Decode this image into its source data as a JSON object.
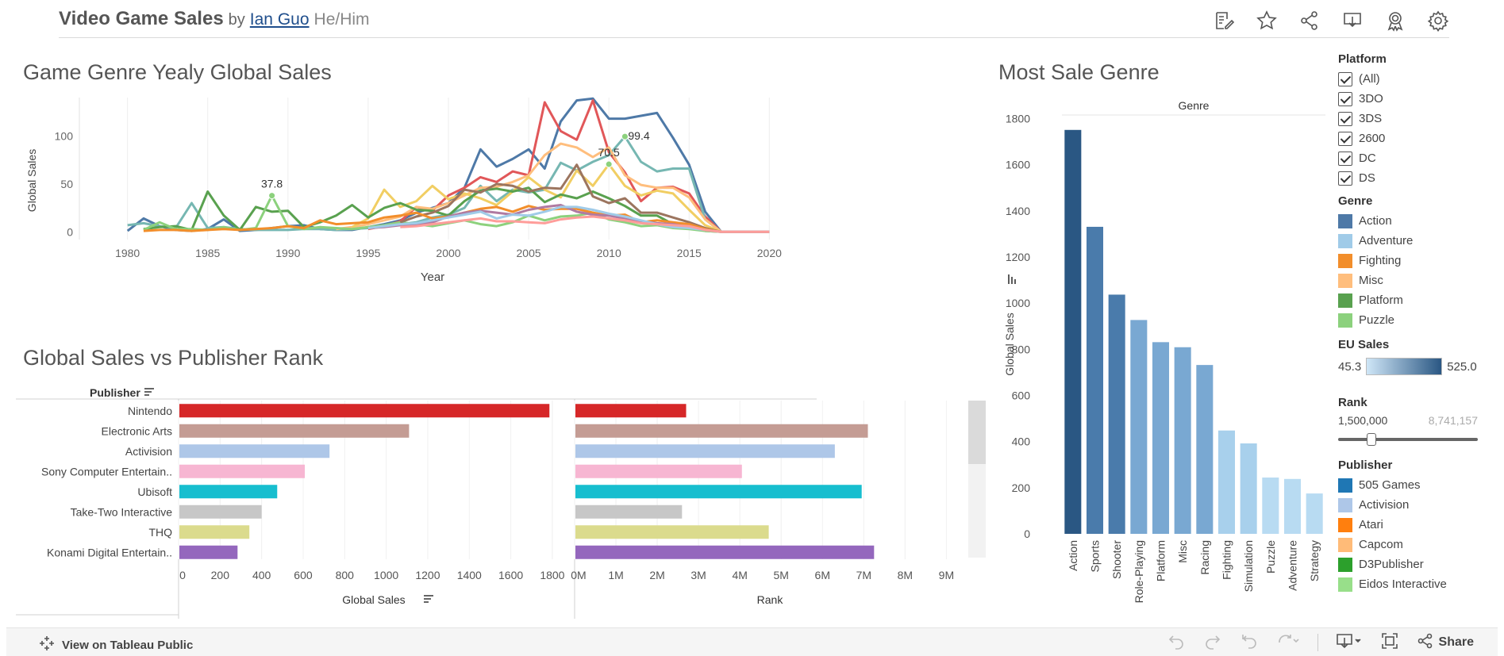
{
  "header": {
    "title": "Video Game Sales",
    "by": "by",
    "author": "Ian Guo",
    "pronouns": "He/Him",
    "icons": [
      "edit-icon",
      "star-icon",
      "share-icon",
      "download-icon",
      "badge-icon",
      "gear-icon"
    ]
  },
  "footer": {
    "view_label": "View on Tableau Public",
    "share_label": "Share"
  },
  "filters": {
    "platform": {
      "title": "Platform",
      "items": [
        "(All)",
        "3DO",
        "3DS",
        "2600",
        "DC",
        "DS"
      ]
    },
    "genre": {
      "title": "Genre",
      "items": [
        {
          "label": "Action",
          "color": "#4e79a7"
        },
        {
          "label": "Adventure",
          "color": "#a0cbe8"
        },
        {
          "label": "Fighting",
          "color": "#f28e2b"
        },
        {
          "label": "Misc",
          "color": "#ffbe7d"
        },
        {
          "label": "Platform",
          "color": "#59a14f"
        },
        {
          "label": "Puzzle",
          "color": "#8cd17d"
        }
      ]
    },
    "eu_sales": {
      "title": "EU Sales",
      "min": "45.3",
      "max": "525.0",
      "color_low": "#cfe6f7",
      "color_high": "#2a5783"
    },
    "rank": {
      "title": "Rank",
      "low": "1,500,000",
      "high": "8,741,157"
    },
    "publisher": {
      "title": "Publisher",
      "items": [
        {
          "label": "505 Games",
          "color": "#1f77b4"
        },
        {
          "label": "Activision",
          "color": "#aec7e8"
        },
        {
          "label": "Atari",
          "color": "#ff7f0e"
        },
        {
          "label": "Capcom",
          "color": "#ffbb78"
        },
        {
          "label": "D3Publisher",
          "color": "#2ca02c"
        },
        {
          "label": "Eidos Interactive",
          "color": "#98df8a"
        }
      ]
    }
  },
  "chart_data": [
    {
      "type": "line",
      "title": "Game Genre Yealy Global Sales",
      "xlabel": "Year",
      "ylabel": "Global Sales",
      "xlim": [
        1977,
        2023
      ],
      "ylim": [
        -8,
        140
      ],
      "xticks": [
        "1980",
        "1985",
        "1990",
        "1995",
        "2000",
        "2005",
        "2010",
        "2015",
        "2020"
      ],
      "yticks": [
        "0",
        "50",
        "100"
      ],
      "grid": "vertical",
      "annotations": [
        {
          "x": 1989,
          "y": 37.8,
          "label": "37.8"
        },
        {
          "x": 2011,
          "y": 99.4,
          "label": "99.4"
        },
        {
          "x": 2010,
          "y": 70.5,
          "label": "70.5"
        }
      ],
      "x": [
        1980,
        1981,
        1982,
        1983,
        1984,
        1985,
        1986,
        1987,
        1988,
        1989,
        1990,
        1991,
        1992,
        1993,
        1994,
        1995,
        1996,
        1997,
        1998,
        1999,
        2000,
        2001,
        2002,
        2003,
        2004,
        2005,
        2006,
        2007,
        2008,
        2009,
        2010,
        2011,
        2012,
        2013,
        2014,
        2015,
        2016,
        2017,
        2018,
        2019,
        2020
      ],
      "series": [
        {
          "color": "#4e79a7",
          "values": [
            1,
            14,
            6,
            2,
            1,
            3,
            13,
            1,
            2,
            4,
            6,
            7,
            3,
            2,
            2,
            5,
            8,
            12,
            20,
            25,
            30,
            46,
            86,
            68,
            76,
            86,
            66,
            115,
            137,
            139,
            118,
            118,
            121,
            124,
            98,
            70,
            21,
            0,
            0,
            0,
            0
          ]
        },
        {
          "color": "#e15759",
          "values": [
            null,
            null,
            null,
            null,
            null,
            null,
            null,
            null,
            null,
            null,
            null,
            null,
            null,
            null,
            null,
            3,
            6,
            11,
            26,
            22,
            38,
            46,
            57,
            52,
            63,
            59,
            135,
            105,
            96,
            137,
            83,
            62,
            32,
            46,
            47,
            40,
            16,
            0,
            0,
            0,
            0
          ]
        },
        {
          "color": "#76b7b2",
          "values": [
            7,
            9,
            6,
            4,
            30,
            4,
            5,
            3,
            2,
            2,
            2,
            3,
            3,
            2,
            3,
            4,
            6,
            8,
            10,
            15,
            18,
            25,
            48,
            32,
            44,
            41,
            44,
            72,
            64,
            73,
            80,
            99.4,
            73,
            63,
            66,
            66,
            13,
            0,
            0,
            0,
            0
          ]
        },
        {
          "color": "#ffbe7d",
          "values": [
            null,
            null,
            null,
            null,
            null,
            null,
            null,
            null,
            null,
            null,
            null,
            null,
            null,
            3,
            5,
            8,
            12,
            16,
            26,
            24,
            30,
            38,
            46,
            47,
            52,
            59,
            80,
            92,
            88,
            78,
            88,
            59,
            49,
            46,
            46,
            36,
            13,
            0,
            0,
            0,
            0
          ]
        },
        {
          "color": "#f1ce63",
          "values": [
            null,
            null,
            null,
            null,
            null,
            null,
            null,
            null,
            null,
            null,
            null,
            null,
            null,
            null,
            5,
            14,
            44,
            26,
            32,
            48,
            34,
            40,
            35,
            28,
            42,
            57,
            44,
            36,
            64,
            48,
            70.5,
            48,
            38,
            43,
            40,
            23,
            7,
            0,
            0,
            0,
            0
          ]
        },
        {
          "color": "#59a14f",
          "values": [
            null,
            3,
            5,
            6,
            2,
            42,
            17,
            2,
            26,
            21,
            22,
            5,
            10,
            17,
            28,
            15,
            25,
            30,
            23,
            22,
            17,
            32,
            43,
            45,
            42,
            46,
            31,
            39,
            35,
            42,
            35,
            27,
            17,
            17,
            8,
            7,
            1,
            0,
            0,
            0,
            0
          ]
        },
        {
          "color": "#8cd17d",
          "values": [
            null,
            2,
            10,
            3,
            3,
            2,
            5,
            2,
            4,
            37.8,
            6,
            3,
            5,
            4,
            3,
            5,
            7,
            10,
            8,
            6,
            9,
            12,
            8,
            6,
            10,
            17,
            12,
            16,
            17,
            20,
            13,
            10,
            6,
            7,
            4,
            3,
            1,
            0,
            0,
            0,
            0
          ]
        },
        {
          "color": "#9c755f",
          "values": [
            null,
            null,
            null,
            null,
            null,
            null,
            null,
            null,
            null,
            null,
            null,
            null,
            null,
            null,
            null,
            null,
            null,
            10,
            16,
            20,
            27,
            44,
            41,
            50,
            48,
            42,
            46,
            45,
            70,
            37,
            30,
            35,
            20,
            20,
            15,
            10,
            4,
            0,
            0,
            0,
            0
          ]
        },
        {
          "color": "#f28e2b",
          "values": [
            null,
            1,
            2,
            2,
            1,
            2,
            3,
            2,
            3,
            4,
            6,
            4,
            12,
            8,
            9,
            10,
            15,
            17,
            20,
            14,
            16,
            20,
            24,
            26,
            21,
            27,
            23,
            24,
            24,
            20,
            17,
            18,
            10,
            12,
            10,
            8,
            3,
            0,
            0,
            0,
            0
          ]
        },
        {
          "color": "#b07aa1",
          "values": [
            null,
            null,
            null,
            null,
            null,
            null,
            null,
            null,
            null,
            null,
            null,
            null,
            null,
            null,
            null,
            4,
            5,
            7,
            8,
            10,
            16,
            20,
            22,
            20,
            18,
            23,
            26,
            28,
            21,
            18,
            17,
            14,
            11,
            9,
            8,
            5,
            2,
            0,
            0,
            0,
            0
          ]
        },
        {
          "color": "#a0cbe8",
          "values": [
            null,
            null,
            null,
            null,
            null,
            null,
            null,
            null,
            null,
            null,
            null,
            null,
            null,
            null,
            null,
            4,
            6,
            8,
            9,
            12,
            15,
            18,
            21,
            14,
            18,
            17,
            21,
            26,
            26,
            23,
            19,
            16,
            12,
            8,
            5,
            4,
            2,
            0,
            0,
            0,
            0
          ]
        },
        {
          "color": "#ff9d9a",
          "values": [
            null,
            null,
            null,
            null,
            null,
            null,
            null,
            null,
            null,
            null,
            null,
            null,
            null,
            null,
            null,
            null,
            null,
            5,
            6,
            8,
            10,
            12,
            14,
            11,
            11,
            10,
            9,
            13,
            15,
            16,
            14,
            12,
            9,
            8,
            7,
            6,
            2,
            0,
            0,
            0,
            0
          ]
        }
      ]
    },
    {
      "type": "bar",
      "title": "Global Sales vs Publisher Rank",
      "categories_header": "Publisher",
      "categories": [
        "Nintendo",
        "Electronic Arts",
        "Activision",
        "Sony Computer Entertain..",
        "Ubisoft",
        "Take-Two Interactive",
        "THQ",
        "Konami Digital Entertain.."
      ],
      "colors": [
        "#d62728",
        "#c49c94",
        "#aec7e8",
        "#f7b6d2",
        "#17becf",
        "#c7c7c7",
        "#dbdb8d",
        "#9467bd"
      ],
      "panels": [
        {
          "xlabel": "Global Sales",
          "xlim": [
            0,
            1850
          ],
          "xticks": [
            "0",
            "200",
            "400",
            "600",
            "800",
            "1000",
            "1200",
            "1400",
            "1600",
            "1800"
          ],
          "tick_values": [
            0,
            200,
            400,
            600,
            800,
            1000,
            1200,
            1400,
            1600,
            1800
          ],
          "values": [
            1786,
            1110,
            727,
            608,
            475,
            400,
            341,
            284
          ]
        },
        {
          "xlabel": "Rank",
          "xlim": [
            0,
            9300000
          ],
          "xticks": [
            "0M",
            "1M",
            "2M",
            "3M",
            "4M",
            "5M",
            "6M",
            "7M",
            "8M",
            "9M"
          ],
          "tick_values": [
            0,
            1000000,
            2000000,
            3000000,
            4000000,
            5000000,
            6000000,
            7000000,
            8000000,
            9000000
          ],
          "values": [
            2700000,
            7100000,
            6300000,
            4050000,
            6950000,
            2600000,
            4700000,
            7250000
          ]
        }
      ]
    },
    {
      "type": "bar",
      "title": "Most Sale Genre",
      "header": "Genre",
      "ylabel": "Global Sales",
      "ylim": [
        0,
        1850
      ],
      "yticks": [
        "0",
        "200",
        "400",
        "600",
        "800",
        "1000",
        "1200",
        "1400",
        "1600",
        "1800"
      ],
      "tick_values": [
        0,
        200,
        400,
        600,
        800,
        1000,
        1200,
        1400,
        1600,
        1800
      ],
      "categories": [
        "Action",
        "Sports",
        "Shooter",
        "Role-Playing",
        "Platform",
        "Misc",
        "Racing",
        "Fighting",
        "Simulation",
        "Puzzle",
        "Adventure",
        "Strategy"
      ],
      "values": [
        1751,
        1331,
        1037,
        927,
        831,
        809,
        732,
        448,
        392,
        244,
        238,
        175
      ],
      "colors": [
        "#2a5783",
        "#4a7bab",
        "#4a7bab",
        "#79a8d2",
        "#79a8d2",
        "#79a8d2",
        "#79a8d2",
        "#a8d0ec",
        "#a8d0ec",
        "#b8dbf2",
        "#b8dbf2",
        "#b8dbf2"
      ]
    }
  ]
}
